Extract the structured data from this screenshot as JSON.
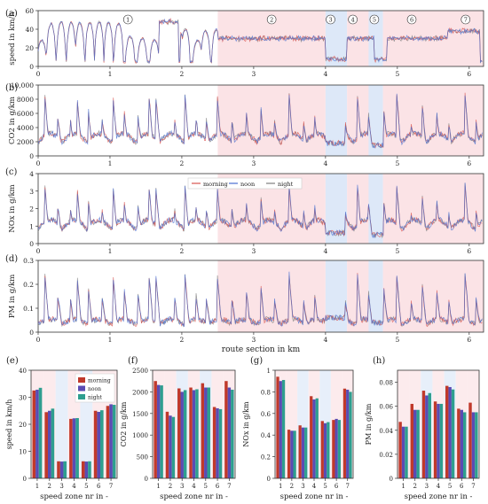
{
  "chart_data": [
    {
      "panel": "(a)",
      "type": "line",
      "ylabel": "speed in km/h",
      "xlabel": "",
      "xlim": [
        0,
        6.2
      ],
      "ylim": [
        0,
        60
      ],
      "yticks": [
        "0",
        "20",
        "40",
        "60"
      ],
      "xticks": [
        "0",
        "1",
        "2",
        "3",
        "4",
        "5",
        "6"
      ],
      "zone_labels": [
        "1",
        "2",
        "3",
        "4",
        "5",
        "6",
        "7"
      ],
      "zone_label_x": [
        1.25,
        3.25,
        4.07,
        4.38,
        4.68,
        5.2,
        5.95
      ],
      "series": [
        {
          "name": "morning",
          "color": "#d9534f"
        },
        {
          "name": "noon",
          "color": "#4a6fd1"
        },
        {
          "name": "night",
          "color": "#8c8c8c"
        }
      ],
      "pattern": {
        "kind": "speed",
        "peaks_x": [
          0.05,
          0.18,
          0.32,
          0.46,
          0.58,
          0.72,
          0.85,
          0.98,
          1.12,
          1.28,
          1.45,
          1.62,
          2.05,
          2.22,
          2.33,
          2.48
        ],
        "peak_values": [
          28,
          46,
          48,
          47,
          47,
          47,
          48,
          47,
          46,
          32,
          30,
          28,
          40,
          28,
          38,
          40
        ],
        "cruise_segments": [
          [
            1.68,
            1.96,
            48
          ],
          [
            1.98,
            2.0,
            35
          ],
          [
            2.5,
            4.0,
            30
          ],
          [
            4.0,
            4.3,
            8
          ],
          [
            4.3,
            4.68,
            30
          ],
          [
            4.68,
            4.85,
            8
          ],
          [
            4.85,
            5.7,
            30
          ],
          [
            5.7,
            6.15,
            38
          ]
        ]
      }
    },
    {
      "panel": "(b)",
      "type": "line",
      "ylabel": "CO2 in g/km",
      "xlabel": "",
      "xlim": [
        0,
        6.2
      ],
      "ylim": [
        0,
        10000
      ],
      "yticks": [
        "0",
        "2000",
        "4000",
        "6000",
        "8000",
        "10,000"
      ],
      "xticks": [
        "0",
        "1",
        "2",
        "3",
        "4",
        "5",
        "6"
      ],
      "pattern": {
        "kind": "emission",
        "base": 3500,
        "spike": 7800,
        "zone3_level": 1800,
        "zone5_level": 1500
      }
    },
    {
      "panel": "(c)",
      "type": "line",
      "ylabel": "NOx in g/km",
      "xlabel": "",
      "xlim": [
        0,
        6.2
      ],
      "ylim": [
        0,
        4
      ],
      "yticks": [
        "0",
        "1",
        "2",
        "3",
        "4"
      ],
      "xticks": [
        "0",
        "1",
        "2",
        "3",
        "4",
        "5",
        "6"
      ],
      "legend": [
        "morning",
        "noon",
        "night"
      ],
      "pattern": {
        "kind": "emission",
        "base": 1.5,
        "spike": 3.0,
        "zone3_level": 0.6,
        "zone5_level": 0.5
      }
    },
    {
      "panel": "(d)",
      "type": "line",
      "ylabel": "PM in g/km",
      "xlabel": "route section in km",
      "xlim": [
        0,
        6.2
      ],
      "ylim": [
        0,
        0.3
      ],
      "yticks": [
        "0",
        "0.1",
        "0.2",
        "0.3"
      ],
      "xticks": [
        "0",
        "1",
        "2",
        "3",
        "4",
        "5",
        "6"
      ],
      "pattern": {
        "kind": "emission",
        "base": 0.06,
        "spike": 0.22,
        "zone3_level": 0.06,
        "zone5_level": 0.04
      }
    },
    {
      "panel": "(e)",
      "type": "bar",
      "ylabel": "speed in km/h",
      "xlabel": "speed zone nr in -",
      "categories": [
        "1",
        "2",
        "3",
        "4",
        "5",
        "6",
        "7"
      ],
      "ylim": [
        0,
        40
      ],
      "yticks": [
        "0",
        "10",
        "20",
        "30",
        "40"
      ],
      "legend": [
        "morning",
        "noon",
        "night"
      ],
      "series": [
        {
          "name": "morning",
          "values": [
            32.5,
            24.5,
            6.3,
            22,
            6.3,
            25,
            26.8
          ]
        },
        {
          "name": "noon",
          "values": [
            32.8,
            25,
            6.2,
            22.2,
            6.2,
            24.6,
            27.4
          ]
        },
        {
          "name": "night",
          "values": [
            33.5,
            25.8,
            6.3,
            22.3,
            6.3,
            25.2,
            27.2
          ]
        }
      ]
    },
    {
      "panel": "(f)",
      "type": "bar",
      "ylabel": "CO2 in g/km",
      "xlabel": "speed zone nr in -",
      "categories": [
        "1",
        "2",
        "3",
        "4",
        "5",
        "6",
        "7"
      ],
      "ylim": [
        0,
        2500
      ],
      "yticks": [
        "0",
        "500",
        "1000",
        "1500",
        "2000",
        "2500"
      ],
      "series": [
        {
          "name": "morning",
          "values": [
            2250,
            1540,
            2080,
            2100,
            2200,
            1650,
            2250
          ]
        },
        {
          "name": "noon",
          "values": [
            2160,
            1450,
            2000,
            2040,
            2100,
            1620,
            2100
          ]
        },
        {
          "name": "night",
          "values": [
            2150,
            1420,
            2040,
            2060,
            2100,
            1600,
            2050
          ]
        }
      ]
    },
    {
      "panel": "(g)",
      "type": "bar",
      "ylabel": "NOx in g/km",
      "xlabel": "speed zone nr in -",
      "categories": [
        "1",
        "2",
        "3",
        "4",
        "5",
        "6",
        "7"
      ],
      "ylim": [
        0,
        1.0
      ],
      "yticks": [
        "0",
        "0.2",
        "0.4",
        "0.6",
        "0.8",
        "1"
      ],
      "series": [
        {
          "name": "morning",
          "values": [
            0.94,
            0.45,
            0.49,
            0.76,
            0.53,
            0.54,
            0.83
          ]
        },
        {
          "name": "noon",
          "values": [
            0.9,
            0.44,
            0.47,
            0.73,
            0.51,
            0.55,
            0.82
          ]
        },
        {
          "name": "night",
          "values": [
            0.91,
            0.44,
            0.47,
            0.74,
            0.52,
            0.54,
            0.8
          ]
        }
      ]
    },
    {
      "panel": "(h)",
      "type": "bar",
      "ylabel": "PM in g/km",
      "xlabel": "speed zone nr in -",
      "categories": [
        "1",
        "2",
        "3",
        "4",
        "5",
        "6",
        "7"
      ],
      "ylim": [
        0,
        0.09
      ],
      "yticks": [
        "0",
        "0.02",
        "0.04",
        "0.06",
        "0.08"
      ],
      "series": [
        {
          "name": "morning",
          "values": [
            0.047,
            0.062,
            0.073,
            0.064,
            0.077,
            0.058,
            0.063
          ]
        },
        {
          "name": "noon",
          "values": [
            0.043,
            0.057,
            0.069,
            0.062,
            0.076,
            0.057,
            0.055
          ]
        },
        {
          "name": "night",
          "values": [
            0.043,
            0.057,
            0.071,
            0.062,
            0.074,
            0.055,
            0.055
          ]
        }
      ]
    }
  ],
  "colors": {
    "morning": "#c0392b",
    "noon": "#5b4bb3",
    "night": "#2e9e8f",
    "line_morning": "#d9534f",
    "line_noon": "#4a6fd1",
    "line_night": "#7f7f7f",
    "zone_red": "#fbe3e6",
    "zone_blue": "#dde8f8"
  },
  "zones": [
    {
      "from": 2.5,
      "to": 4.0,
      "kind": "red"
    },
    {
      "from": 4.0,
      "to": 4.3,
      "kind": "blue"
    },
    {
      "from": 4.3,
      "to": 4.6,
      "kind": "red"
    },
    {
      "from": 4.6,
      "to": 4.8,
      "kind": "blue"
    },
    {
      "from": 4.8,
      "to": 5.7,
      "kind": "red"
    },
    {
      "from": 5.7,
      "to": 6.2,
      "kind": "red"
    }
  ]
}
